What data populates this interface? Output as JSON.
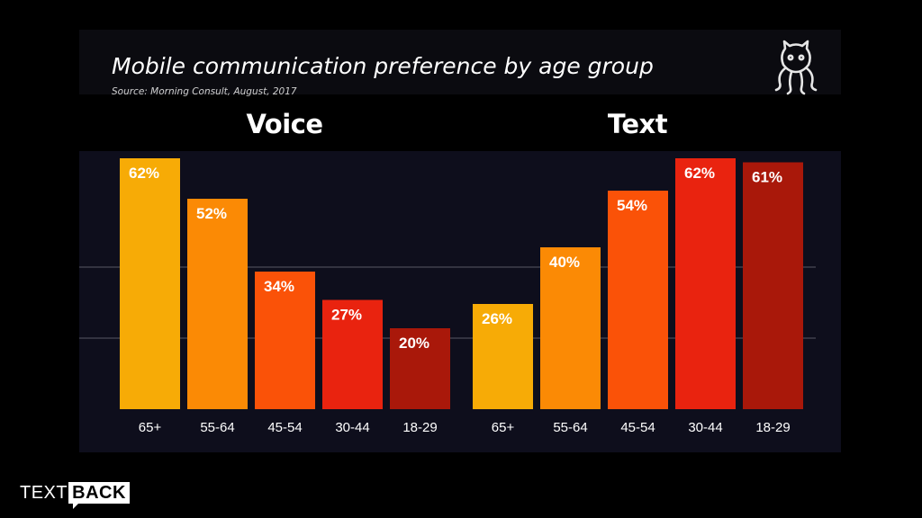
{
  "slide": {
    "title": "Mobile communication preference by age group",
    "source": "Source: Morning Consult, August, 2017",
    "logo_icon": "octopus-icon"
  },
  "brand": {
    "text_part": "TEXT",
    "box_part": "BACK"
  },
  "chart_data": [
    {
      "type": "bar",
      "title": "Voice",
      "categories": [
        "65+",
        "55-64",
        "45-54",
        "30-44",
        "18-29"
      ],
      "values": [
        62,
        52,
        34,
        27,
        20
      ],
      "value_labels": [
        "62%",
        "52%",
        "34%",
        "27%",
        "20%"
      ],
      "colors": [
        "#f7ab06",
        "#fb8a05",
        "#fa5208",
        "#e9230f",
        "#a9180a"
      ],
      "ylim": [
        0,
        62
      ],
      "grid": true
    },
    {
      "type": "bar",
      "title": "Text",
      "categories": [
        "65+",
        "55-64",
        "45-54",
        "30-44",
        "18-29"
      ],
      "values": [
        26,
        40,
        54,
        62,
        61
      ],
      "value_labels": [
        "26%",
        "40%",
        "54%",
        "62%",
        "61%"
      ],
      "colors": [
        "#f7ab06",
        "#fb8a05",
        "#fa5208",
        "#e9230f",
        "#a9180a"
      ],
      "ylim": [
        0,
        62
      ],
      "grid": true
    }
  ]
}
